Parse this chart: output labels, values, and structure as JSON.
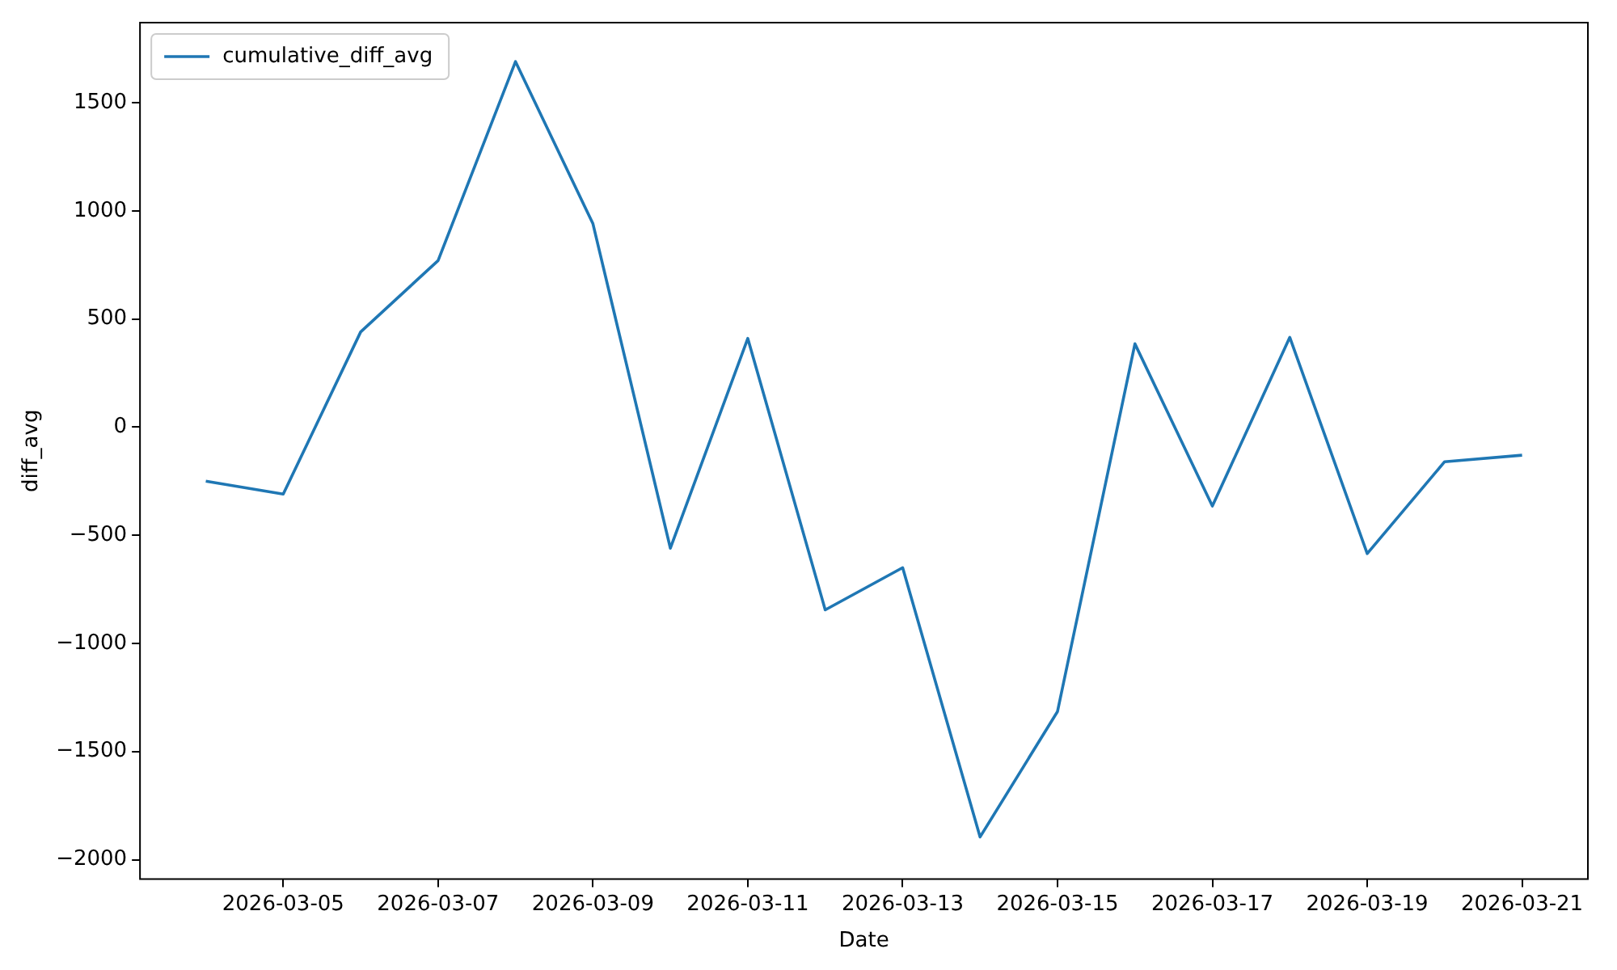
{
  "chart_data": {
    "type": "line",
    "xlabel": "Date",
    "ylabel": "diff_avg",
    "x": [
      "2026-03-04",
      "2026-03-05",
      "2026-03-06",
      "2026-03-07",
      "2026-03-08",
      "2026-03-09",
      "2026-03-10",
      "2026-03-11",
      "2026-03-12",
      "2026-03-13",
      "2026-03-14",
      "2026-03-15",
      "2026-03-16",
      "2026-03-17",
      "2026-03-18",
      "2026-03-19",
      "2026-03-20",
      "2026-03-21"
    ],
    "series": [
      {
        "name": "cumulative_diff_avg",
        "color": "#1f77b4",
        "values": [
          -250,
          -310,
          440,
          770,
          1690,
          940,
          -560,
          410,
          -845,
          -650,
          -1895,
          -1315,
          385,
          -365,
          415,
          -585,
          -160,
          -130
        ]
      }
    ],
    "xlim": [
      "2026-03-03T03:36",
      "2026-03-21T20:24"
    ],
    "xticks": [
      "2026-03-05",
      "2026-03-07",
      "2026-03-09",
      "2026-03-11",
      "2026-03-13",
      "2026-03-15",
      "2026-03-17",
      "2026-03-19",
      "2026-03-21"
    ],
    "ylim": [
      -2090,
      1870
    ],
    "yticks": [
      -2000,
      -1500,
      -1000,
      -500,
      0,
      500,
      1000,
      1500
    ],
    "grid": false,
    "legend": "top left",
    "marker": "none",
    "line_style": "solid"
  }
}
